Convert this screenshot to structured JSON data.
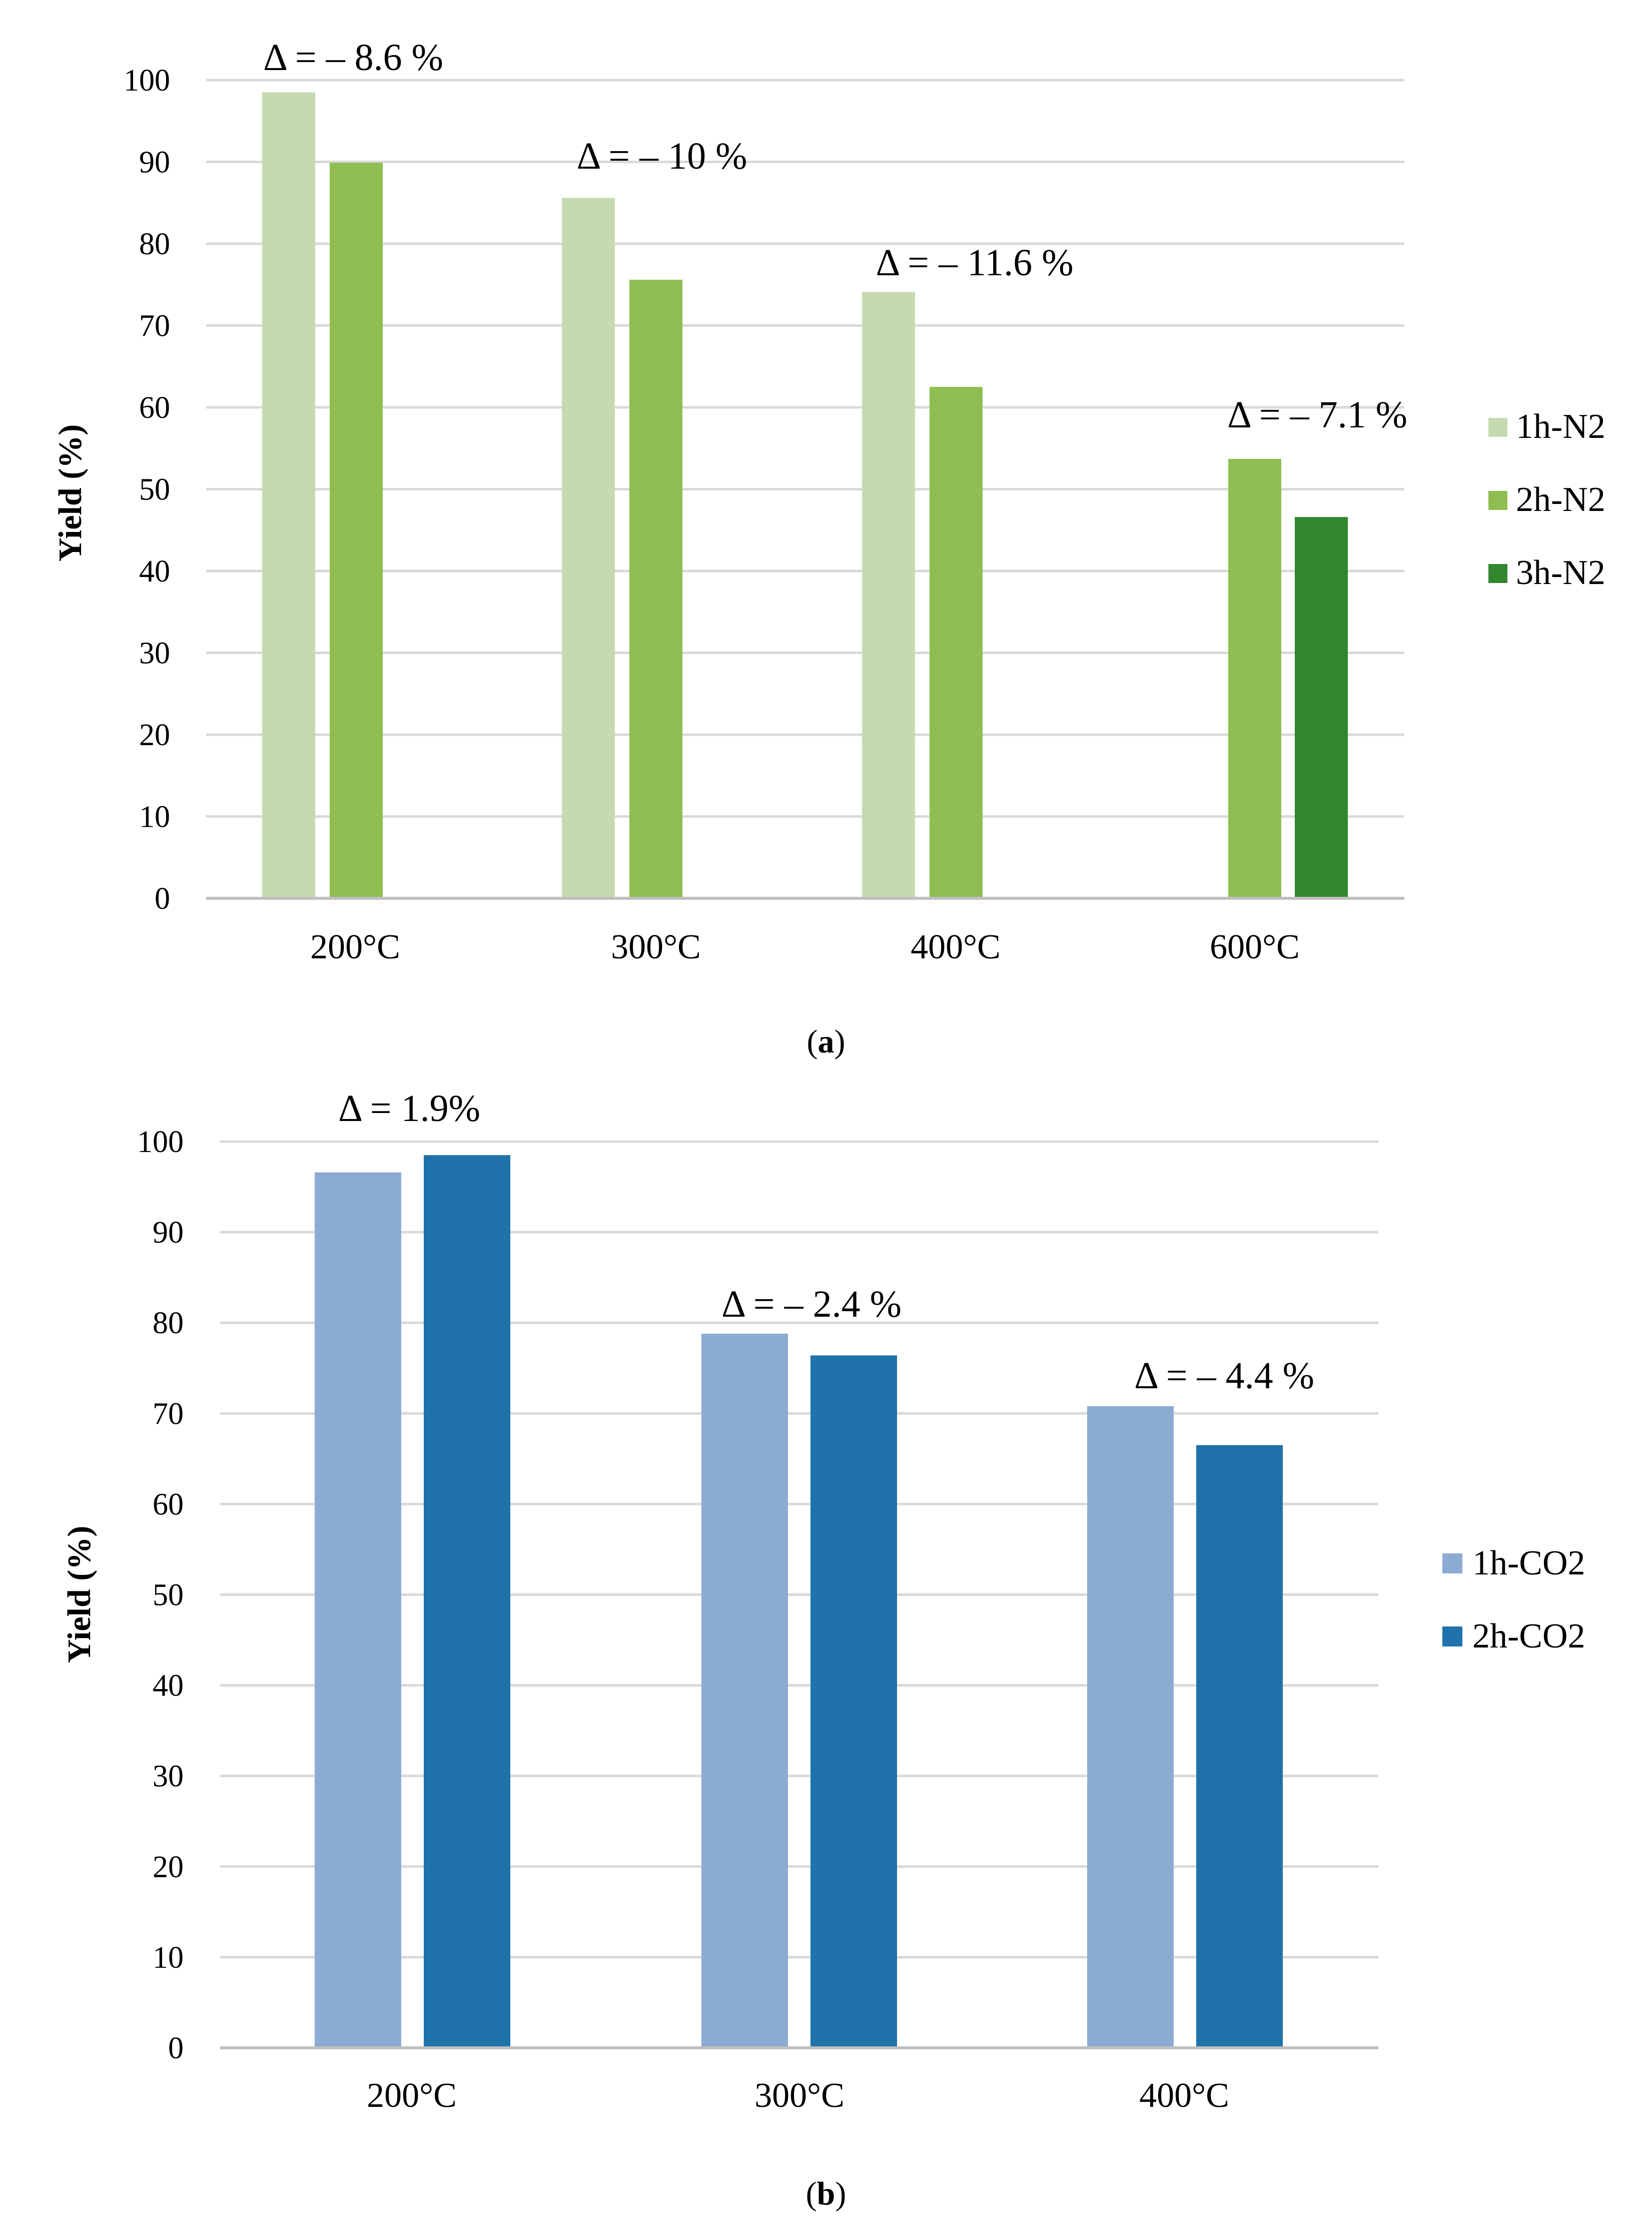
{
  "chart_data": [
    {
      "type": "bar",
      "panel_label": "a",
      "title": "",
      "xlabel": "",
      "ylabel": "Yield (%)",
      "ylim": [
        0,
        100
      ],
      "yticks": [
        0,
        10,
        20,
        30,
        40,
        50,
        60,
        70,
        80,
        90,
        100
      ],
      "grid": true,
      "legend_position": "right",
      "categories": [
        "200°C",
        "300°C",
        "400°C",
        "600°C"
      ],
      "series": [
        {
          "name": "1h-N2",
          "color": "#c5dab0",
          "values": [
            98.5,
            85.6,
            74.1,
            null
          ]
        },
        {
          "name": "2h-N2",
          "color": "#8fbd52",
          "values": [
            89.9,
            75.6,
            62.5,
            53.7
          ]
        },
        {
          "name": "3h-N2",
          "color": "#31862e",
          "values": [
            null,
            null,
            null,
            46.6
          ]
        }
      ],
      "annotations": [
        "Δ = – 8.6 %",
        "Δ = – 10 %",
        "Δ = – 11.6 %",
        "Δ = – 7.1 %"
      ]
    },
    {
      "type": "bar",
      "panel_label": "b",
      "title": "",
      "xlabel": "",
      "ylabel": "Yield (%)",
      "ylim": [
        0,
        100
      ],
      "yticks": [
        0,
        10,
        20,
        30,
        40,
        50,
        60,
        70,
        80,
        90,
        100
      ],
      "grid": true,
      "legend_position": "right",
      "categories": [
        "200°C",
        "300°C",
        "400°C"
      ],
      "series": [
        {
          "name": "1h-CO2",
          "color": "#8cabd3",
          "values": [
            96.6,
            78.8,
            70.8
          ]
        },
        {
          "name": "2h-CO2",
          "color": "#1f72aa",
          "values": [
            98.5,
            76.4,
            66.5
          ]
        }
      ],
      "annotations": [
        "Δ = 1.9%",
        "Δ = – 2.4 %",
        "Δ = – 4.4 %"
      ]
    }
  ]
}
